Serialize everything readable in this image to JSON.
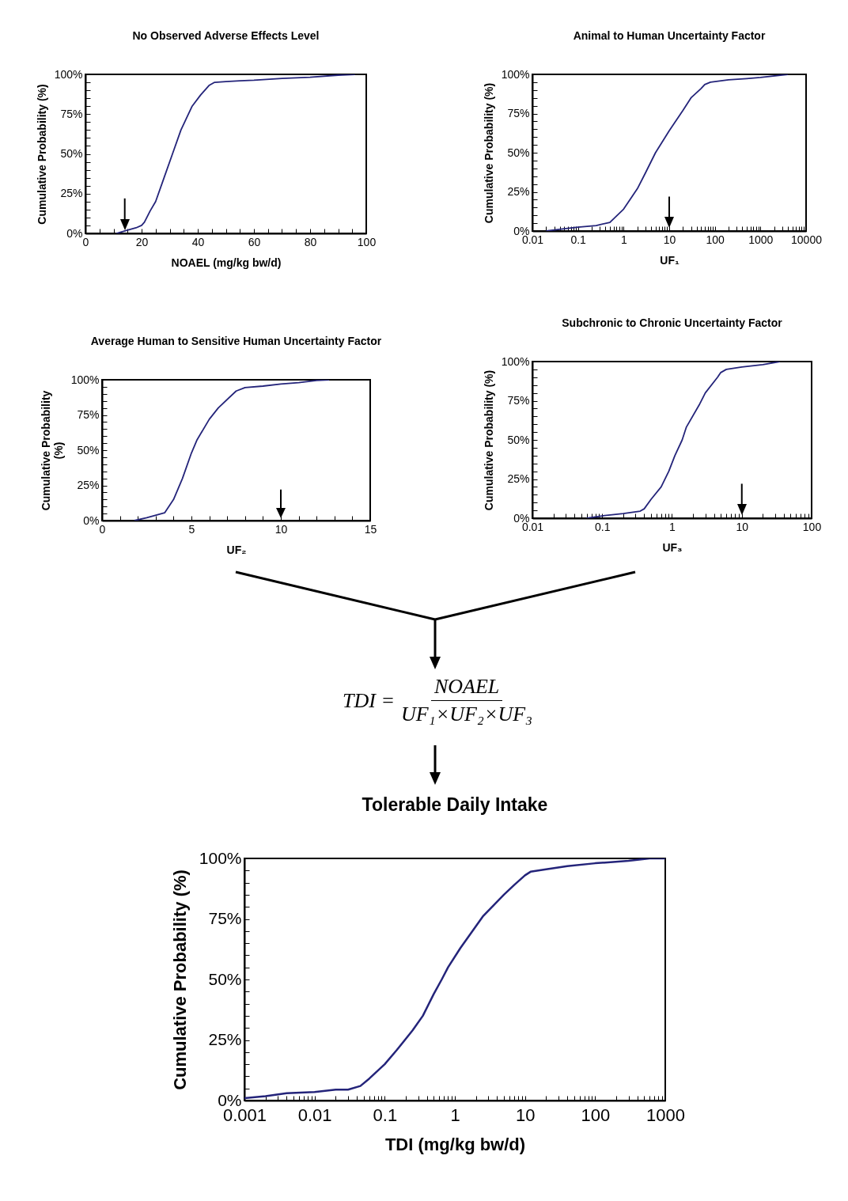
{
  "chart_data": [
    {
      "type": "line",
      "title": "No Observed Adverse Effects Level",
      "xlabel": "NOAEL (mg/kg bw/d)",
      "ylabel": "Cumulative Probability (%)",
      "color": "#24247a",
      "x": [
        11,
        15,
        18,
        20,
        21,
        23,
        25,
        28,
        31,
        34,
        38,
        41,
        44,
        46,
        50,
        55,
        60,
        70,
        80,
        90,
        96
      ],
      "values": [
        0,
        2,
        3.5,
        5,
        7,
        14,
        20,
        35,
        50,
        65,
        80,
        87,
        93,
        95,
        95.5,
        96,
        96.3,
        97.5,
        98.2,
        99.5,
        100
      ],
      "xlim": [
        0,
        100
      ],
      "xticks": [
        0,
        {
          "value": 5,
          "label": null
        },
        {
          "value": 10,
          "label": null
        },
        {
          "value": 15,
          "label": null
        },
        20,
        {
          "value": 25,
          "label": null
        },
        {
          "value": 30,
          "label": null
        },
        {
          "value": 35,
          "label": null
        },
        40,
        {
          "value": 45,
          "label": null
        },
        {
          "value": 50,
          "label": null
        },
        {
          "value": 55,
          "label": null
        },
        60,
        {
          "value": 65,
          "label": null
        },
        {
          "value": 70,
          "label": null
        },
        {
          "value": 75,
          "label": null
        },
        80,
        {
          "value": 85,
          "label": null
        },
        {
          "value": 90,
          "label": null
        },
        {
          "value": 95,
          "label": null
        },
        100
      ],
      "ylim": [
        0,
        100
      ],
      "yticks": [
        {
          "value": 0,
          "label": "0%"
        },
        {
          "value": 5,
          "label": null
        },
        {
          "value": 10,
          "label": null
        },
        {
          "value": 15,
          "label": null
        },
        {
          "value": 20,
          "label": null
        },
        {
          "value": 25,
          "label": "25%"
        },
        {
          "value": 30,
          "label": null
        },
        {
          "value": 35,
          "label": null
        },
        {
          "value": 40,
          "label": null
        },
        {
          "value": 45,
          "label": null
        },
        {
          "value": 50,
          "label": "50%"
        },
        {
          "value": 55,
          "label": null
        },
        {
          "value": 60,
          "label": null
        },
        {
          "value": 65,
          "label": null
        },
        {
          "value": 70,
          "label": null
        },
        {
          "value": 75,
          "label": "75%"
        },
        {
          "value": 80,
          "label": null
        },
        {
          "value": 85,
          "label": null
        },
        {
          "value": 90,
          "label": null
        },
        {
          "value": 95,
          "label": null
        },
        {
          "value": 100,
          "label": "100%"
        }
      ],
      "ref_lines": [
        {
          "axis": "x",
          "value": 14,
          "label": null
        }
      ]
    },
    {
      "type": "line",
      "title": "Animal to Human Uncertainty Factor",
      "xlabel": "UF₁",
      "ylabel": "Cumulative Probability (%)",
      "color": "#24247a",
      "log": "x",
      "x": [
        0.02,
        0.05,
        0.1,
        0.25,
        0.5,
        1,
        2,
        3,
        5,
        10,
        20,
        30,
        50,
        60,
        80,
        200,
        500,
        1000,
        4000
      ],
      "values": [
        0,
        1.5,
        2.5,
        3.5,
        5.5,
        14,
        27,
        37,
        50,
        64,
        77,
        85,
        91,
        93.5,
        95,
        96.5,
        97.3,
        98,
        100
      ],
      "xlim": [
        0.01,
        10000
      ],
      "xticks": [
        0.01,
        {
          "value": 0.02,
          "label": null
        },
        {
          "value": 0.03,
          "label": null
        },
        {
          "value": 0.04,
          "label": null
        },
        {
          "value": 0.05,
          "label": null
        },
        {
          "value": 0.06,
          "label": null
        },
        {
          "value": 0.07,
          "label": null
        },
        {
          "value": 0.08,
          "label": null
        },
        {
          "value": 0.09,
          "label": null
        },
        0.1,
        {
          "value": 0.2,
          "label": null
        },
        {
          "value": 0.3,
          "label": null
        },
        {
          "value": 0.4,
          "label": null
        },
        {
          "value": 0.5,
          "label": null
        },
        {
          "value": 0.6,
          "label": null
        },
        {
          "value": 0.7,
          "label": null
        },
        {
          "value": 0.8,
          "label": null
        },
        {
          "value": 0.9,
          "label": null
        },
        1,
        {
          "value": 2,
          "label": null
        },
        {
          "value": 3,
          "label": null
        },
        {
          "value": 4,
          "label": null
        },
        {
          "value": 5,
          "label": null
        },
        {
          "value": 6,
          "label": null
        },
        {
          "value": 7,
          "label": null
        },
        {
          "value": 8,
          "label": null
        },
        {
          "value": 9,
          "label": null
        },
        10,
        {
          "value": 20,
          "label": null
        },
        {
          "value": 30,
          "label": null
        },
        {
          "value": 40,
          "label": null
        },
        {
          "value": 50,
          "label": null
        },
        {
          "value": 60,
          "label": null
        },
        {
          "value": 70,
          "label": null
        },
        {
          "value": 80,
          "label": null
        },
        {
          "value": 90,
          "label": null
        },
        100,
        {
          "value": 200,
          "label": null
        },
        {
          "value": 300,
          "label": null
        },
        {
          "value": 400,
          "label": null
        },
        {
          "value": 500,
          "label": null
        },
        {
          "value": 600,
          "label": null
        },
        {
          "value": 700,
          "label": null
        },
        {
          "value": 800,
          "label": null
        },
        {
          "value": 900,
          "label": null
        },
        1000,
        {
          "value": 2000,
          "label": null
        },
        {
          "value": 3000,
          "label": null
        },
        {
          "value": 4000,
          "label": null
        },
        {
          "value": 5000,
          "label": null
        },
        {
          "value": 6000,
          "label": null
        },
        {
          "value": 7000,
          "label": null
        },
        {
          "value": 8000,
          "label": null
        },
        {
          "value": 9000,
          "label": null
        },
        10000
      ],
      "ylim": [
        0,
        100
      ],
      "yticks": [
        {
          "value": 0,
          "label": "0%"
        },
        {
          "value": 5,
          "label": null
        },
        {
          "value": 10,
          "label": null
        },
        {
          "value": 15,
          "label": null
        },
        {
          "value": 20,
          "label": null
        },
        {
          "value": 25,
          "label": "25%"
        },
        {
          "value": 30,
          "label": null
        },
        {
          "value": 35,
          "label": null
        },
        {
          "value": 40,
          "label": null
        },
        {
          "value": 45,
          "label": null
        },
        {
          "value": 50,
          "label": "50%"
        },
        {
          "value": 55,
          "label": null
        },
        {
          "value": 60,
          "label": null
        },
        {
          "value": 65,
          "label": null
        },
        {
          "value": 70,
          "label": null
        },
        {
          "value": 75,
          "label": "75%"
        },
        {
          "value": 80,
          "label": null
        },
        {
          "value": 85,
          "label": null
        },
        {
          "value": 90,
          "label": null
        },
        {
          "value": 95,
          "label": null
        },
        {
          "value": 100,
          "label": "100%"
        }
      ],
      "ref_lines": [
        {
          "axis": "x",
          "value": 10,
          "label": null
        }
      ]
    },
    {
      "type": "line",
      "title": "Average Human to Sensitive Human Uncertainty Factor",
      "xlabel": "UF₂",
      "ylabel": "Cumulative Probability (%)",
      "color": "#24247a",
      "x": [
        1.8,
        2.5,
        3.5,
        4,
        4.5,
        5,
        5.3,
        6,
        6.5,
        7.5,
        8,
        9,
        10,
        11,
        12,
        12.7
      ],
      "values": [
        0,
        2,
        5.5,
        15,
        30,
        48,
        57,
        72,
        80,
        92,
        94.5,
        95.5,
        97,
        98,
        99.5,
        100
      ],
      "xlim": [
        0,
        15
      ],
      "xticks": [
        0,
        {
          "value": 1,
          "label": null
        },
        {
          "value": 2,
          "label": null
        },
        {
          "value": 3,
          "label": null
        },
        {
          "value": 4,
          "label": null
        },
        5,
        {
          "value": 6,
          "label": null
        },
        {
          "value": 7,
          "label": null
        },
        {
          "value": 8,
          "label": null
        },
        {
          "value": 9,
          "label": null
        },
        10,
        {
          "value": 11,
          "label": null
        },
        {
          "value": 12,
          "label": null
        },
        {
          "value": 13,
          "label": null
        },
        {
          "value": 14,
          "label": null
        },
        15
      ],
      "ylim": [
        0,
        100
      ],
      "yticks": [
        {
          "value": 0,
          "label": "0%"
        },
        {
          "value": 5,
          "label": null
        },
        {
          "value": 10,
          "label": null
        },
        {
          "value": 15,
          "label": null
        },
        {
          "value": 20,
          "label": null
        },
        {
          "value": 25,
          "label": "25%"
        },
        {
          "value": 30,
          "label": null
        },
        {
          "value": 35,
          "label": null
        },
        {
          "value": 40,
          "label": null
        },
        {
          "value": 45,
          "label": null
        },
        {
          "value": 50,
          "label": "50%"
        },
        {
          "value": 55,
          "label": null
        },
        {
          "value": 60,
          "label": null
        },
        {
          "value": 65,
          "label": null
        },
        {
          "value": 70,
          "label": null
        },
        {
          "value": 75,
          "label": "75%"
        },
        {
          "value": 80,
          "label": null
        },
        {
          "value": 85,
          "label": null
        },
        {
          "value": 90,
          "label": null
        },
        {
          "value": 95,
          "label": null
        },
        {
          "value": 100,
          "label": "100%"
        }
      ],
      "ref_lines": [
        {
          "axis": "x",
          "value": 10,
          "label": null
        }
      ]
    },
    {
      "type": "line",
      "title": "Subchronic to Chronic Uncertainty Factor",
      "xlabel": "UF₃",
      "ylabel": "Cumulative Probability (%)",
      "color": "#24247a",
      "log": "x",
      "x": [
        0.06,
        0.1,
        0.2,
        0.35,
        0.4,
        0.5,
        0.7,
        0.9,
        1.1,
        1.4,
        1.6,
        2.5,
        3,
        4.5,
        5,
        6,
        10,
        20,
        35
      ],
      "values": [
        0,
        1.5,
        3,
        4.5,
        6,
        12,
        20,
        30,
        40,
        50,
        58,
        73,
        80,
        90,
        93,
        95,
        96.5,
        98,
        100
      ],
      "xlim": [
        0.01,
        100
      ],
      "xticks": [
        0.01,
        {
          "value": 0.02,
          "label": null
        },
        {
          "value": 0.03,
          "label": null
        },
        {
          "value": 0.04,
          "label": null
        },
        {
          "value": 0.05,
          "label": null
        },
        {
          "value": 0.06,
          "label": null
        },
        {
          "value": 0.07,
          "label": null
        },
        {
          "value": 0.08,
          "label": null
        },
        {
          "value": 0.09,
          "label": null
        },
        0.1,
        {
          "value": 0.2,
          "label": null
        },
        {
          "value": 0.3,
          "label": null
        },
        {
          "value": 0.4,
          "label": null
        },
        {
          "value": 0.5,
          "label": null
        },
        {
          "value": 0.6,
          "label": null
        },
        {
          "value": 0.7,
          "label": null
        },
        {
          "value": 0.8,
          "label": null
        },
        {
          "value": 0.9,
          "label": null
        },
        1,
        {
          "value": 2,
          "label": null
        },
        {
          "value": 3,
          "label": null
        },
        {
          "value": 4,
          "label": null
        },
        {
          "value": 5,
          "label": null
        },
        {
          "value": 6,
          "label": null
        },
        {
          "value": 7,
          "label": null
        },
        {
          "value": 8,
          "label": null
        },
        {
          "value": 9,
          "label": null
        },
        10,
        {
          "value": 20,
          "label": null
        },
        {
          "value": 30,
          "label": null
        },
        {
          "value": 40,
          "label": null
        },
        {
          "value": 50,
          "label": null
        },
        {
          "value": 60,
          "label": null
        },
        {
          "value": 70,
          "label": null
        },
        {
          "value": 80,
          "label": null
        },
        {
          "value": 90,
          "label": null
        },
        100
      ],
      "ylim": [
        0,
        100
      ],
      "yticks": [
        {
          "value": 0,
          "label": "0%"
        },
        {
          "value": 5,
          "label": null
        },
        {
          "value": 10,
          "label": null
        },
        {
          "value": 15,
          "label": null
        },
        {
          "value": 20,
          "label": null
        },
        {
          "value": 25,
          "label": "25%"
        },
        {
          "value": 30,
          "label": null
        },
        {
          "value": 35,
          "label": null
        },
        {
          "value": 40,
          "label": null
        },
        {
          "value": 45,
          "label": null
        },
        {
          "value": 50,
          "label": "50%"
        },
        {
          "value": 55,
          "label": null
        },
        {
          "value": 60,
          "label": null
        },
        {
          "value": 65,
          "label": null
        },
        {
          "value": 70,
          "label": null
        },
        {
          "value": 75,
          "label": "75%"
        },
        {
          "value": 80,
          "label": null
        },
        {
          "value": 85,
          "label": null
        },
        {
          "value": 90,
          "label": null
        },
        {
          "value": 95,
          "label": null
        },
        {
          "value": 100,
          "label": "100%"
        }
      ],
      "ref_lines": [
        {
          "axis": "x",
          "value": 10,
          "label": null
        }
      ]
    },
    {
      "type": "other",
      "annotations": [
        "TDI =",
        "NOAEL",
        "UF₁×UF₂×UF₃"
      ]
    },
    {
      "type": "line",
      "title": "Tolerable Daily Intake",
      "xlabel": "TDI (mg/kg bw/d)",
      "ylabel": "Cumulative Probability (%)",
      "color": "#24247a",
      "log": "x",
      "x": [
        0.001,
        0.002,
        0.004,
        0.01,
        0.02,
        0.03,
        0.045,
        0.06,
        0.1,
        0.15,
        0.25,
        0.35,
        0.5,
        0.65,
        0.8,
        1.2,
        2.5,
        5,
        7,
        10,
        12,
        20,
        40,
        100,
        300,
        600,
        1000
      ],
      "values": [
        1,
        1.8,
        3,
        3.5,
        4.5,
        4.5,
        6,
        9,
        15,
        21,
        29,
        35,
        44,
        50,
        55,
        63,
        76,
        85,
        89,
        93,
        94.5,
        95.5,
        96.8,
        98,
        99,
        100,
        100
      ],
      "xlim": [
        0.001,
        1000
      ],
      "xticks": [
        0.001,
        {
          "value": 0.002,
          "label": null
        },
        {
          "value": 0.003,
          "label": null
        },
        {
          "value": 0.004,
          "label": null
        },
        {
          "value": 0.005,
          "label": null
        },
        {
          "value": 0.006,
          "label": null
        },
        {
          "value": 0.007,
          "label": null
        },
        {
          "value": 0.008,
          "label": null
        },
        {
          "value": 0.009,
          "label": null
        },
        0.01,
        {
          "value": 0.02,
          "label": null
        },
        {
          "value": 0.03,
          "label": null
        },
        {
          "value": 0.04,
          "label": null
        },
        {
          "value": 0.05,
          "label": null
        },
        {
          "value": 0.06,
          "label": null
        },
        {
          "value": 0.07,
          "label": null
        },
        {
          "value": 0.08,
          "label": null
        },
        {
          "value": 0.09,
          "label": null
        },
        0.1,
        {
          "value": 0.2,
          "label": null
        },
        {
          "value": 0.3,
          "label": null
        },
        {
          "value": 0.4,
          "label": null
        },
        {
          "value": 0.5,
          "label": null
        },
        {
          "value": 0.6,
          "label": null
        },
        {
          "value": 0.7,
          "label": null
        },
        {
          "value": 0.8,
          "label": null
        },
        {
          "value": 0.9,
          "label": null
        },
        1,
        {
          "value": 2,
          "label": null
        },
        {
          "value": 3,
          "label": null
        },
        {
          "value": 4,
          "label": null
        },
        {
          "value": 5,
          "label": null
        },
        {
          "value": 6,
          "label": null
        },
        {
          "value": 7,
          "label": null
        },
        {
          "value": 8,
          "label": null
        },
        {
          "value": 9,
          "label": null
        },
        10,
        {
          "value": 20,
          "label": null
        },
        {
          "value": 30,
          "label": null
        },
        {
          "value": 40,
          "label": null
        },
        {
          "value": 50,
          "label": null
        },
        {
          "value": 60,
          "label": null
        },
        {
          "value": 70,
          "label": null
        },
        {
          "value": 80,
          "label": null
        },
        {
          "value": 90,
          "label": null
        },
        100,
        {
          "value": 200,
          "label": null
        },
        {
          "value": 300,
          "label": null
        },
        {
          "value": 400,
          "label": null
        },
        {
          "value": 500,
          "label": null
        },
        {
          "value": 600,
          "label": null
        },
        {
          "value": 700,
          "label": null
        },
        {
          "value": 800,
          "label": null
        },
        {
          "value": 900,
          "label": null
        },
        1000
      ],
      "ylim": [
        0,
        100
      ],
      "yticks": [
        {
          "value": 0,
          "label": "0%"
        },
        {
          "value": 5,
          "label": null
        },
        {
          "value": 10,
          "label": null
        },
        {
          "value": 15,
          "label": null
        },
        {
          "value": 20,
          "label": null
        },
        {
          "value": 25,
          "label": "25%"
        },
        {
          "value": 30,
          "label": null
        },
        {
          "value": 35,
          "label": null
        },
        {
          "value": 40,
          "label": null
        },
        {
          "value": 45,
          "label": null
        },
        {
          "value": 50,
          "label": "50%"
        },
        {
          "value": 55,
          "label": null
        },
        {
          "value": 60,
          "label": null
        },
        {
          "value": 65,
          "label": null
        },
        {
          "value": 70,
          "label": null
        },
        {
          "value": 75,
          "label": "75%"
        },
        {
          "value": 80,
          "label": null
        },
        {
          "value": 85,
          "label": null
        },
        {
          "value": 90,
          "label": null
        },
        {
          "value": 95,
          "label": null
        },
        {
          "value": 100,
          "label": "100%"
        }
      ]
    }
  ]
}
